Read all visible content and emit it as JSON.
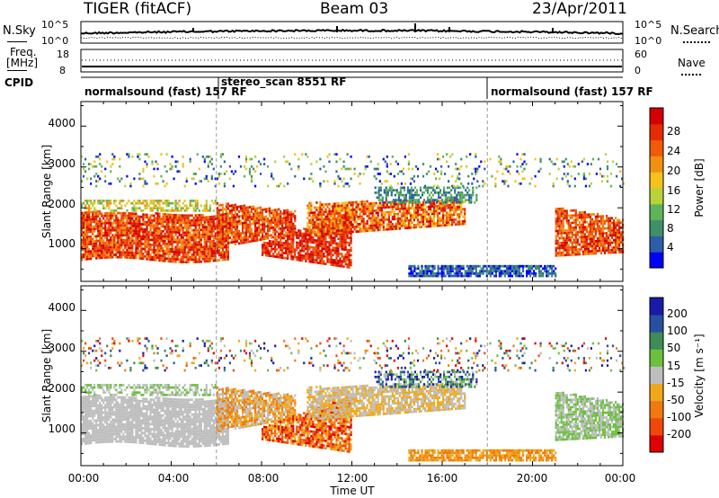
{
  "header": {
    "radar": "TIGER (fitACF)",
    "beam": "Beam 03",
    "date": "23/Apr/2011"
  },
  "top_panels": {
    "nsky_label": "N.Sky",
    "nsearch_label": "N.Search",
    "nsky_ticks": [
      "10^5",
      "10^0"
    ],
    "nsearch_ticks": [
      "10^5",
      "10^0"
    ],
    "freq_label_1": "Freq.",
    "freq_label_2": "[MHz]",
    "freq_ticks": [
      "18",
      "8"
    ],
    "nave_label": "Nave",
    "nave_ticks": [
      "60",
      "0"
    ],
    "cpid_label": "CPID",
    "modes": [
      {
        "label": "normalsound (fast) 157 RF",
        "start": "00:00"
      },
      {
        "label": "stereo_scan 8551 RF",
        "start": "06:00"
      },
      {
        "label": "normalsound (fast) 157 RF",
        "start": "18:00"
      }
    ]
  },
  "chart_data": [
    {
      "type": "heatmap",
      "name": "power",
      "ylabel": "Slant Range [km]",
      "yticks": [
        "1000",
        "2000",
        "3000",
        "4000"
      ],
      "ylim": [
        200,
        4600
      ],
      "xlim": [
        "00:00",
        "24:00"
      ],
      "colorbar": {
        "label": "Power [dB]",
        "ticks": [
          "4",
          "8",
          "12",
          "16",
          "20",
          "24",
          "28"
        ],
        "range": [
          0,
          32
        ],
        "colors": [
          "#0000ff",
          "#2c5ea8",
          "#3f8f6a",
          "#5fb35a",
          "#b8d23a",
          "#f4c21a",
          "#f09010",
          "#f05a08",
          "#e52b04",
          "#d40000"
        ]
      }
    },
    {
      "type": "heatmap",
      "name": "velocity",
      "ylabel": "Slant Range [km]",
      "yticks": [
        "1000",
        "2000",
        "3000",
        "4000"
      ],
      "ylim": [
        200,
        4600
      ],
      "xlabel": "Time UT",
      "xticks": [
        "00:00",
        "04:00",
        "08:00",
        "12:00",
        "16:00",
        "20:00",
        "00:00"
      ],
      "xlim": [
        "00:00",
        "24:00"
      ],
      "colorbar": {
        "label": "Velocity [m s⁻¹]",
        "ticks": [
          "200",
          "100",
          "50",
          "15",
          "-15",
          "-50",
          "-100",
          "-200"
        ],
        "range": [
          -250,
          250
        ],
        "colors": [
          "#1a1aa8",
          "#2850a0",
          "#3e8c58",
          "#6cc040",
          "#bebebe",
          "#f0a818",
          "#f07a10",
          "#f04808",
          "#e00000"
        ]
      }
    }
  ]
}
